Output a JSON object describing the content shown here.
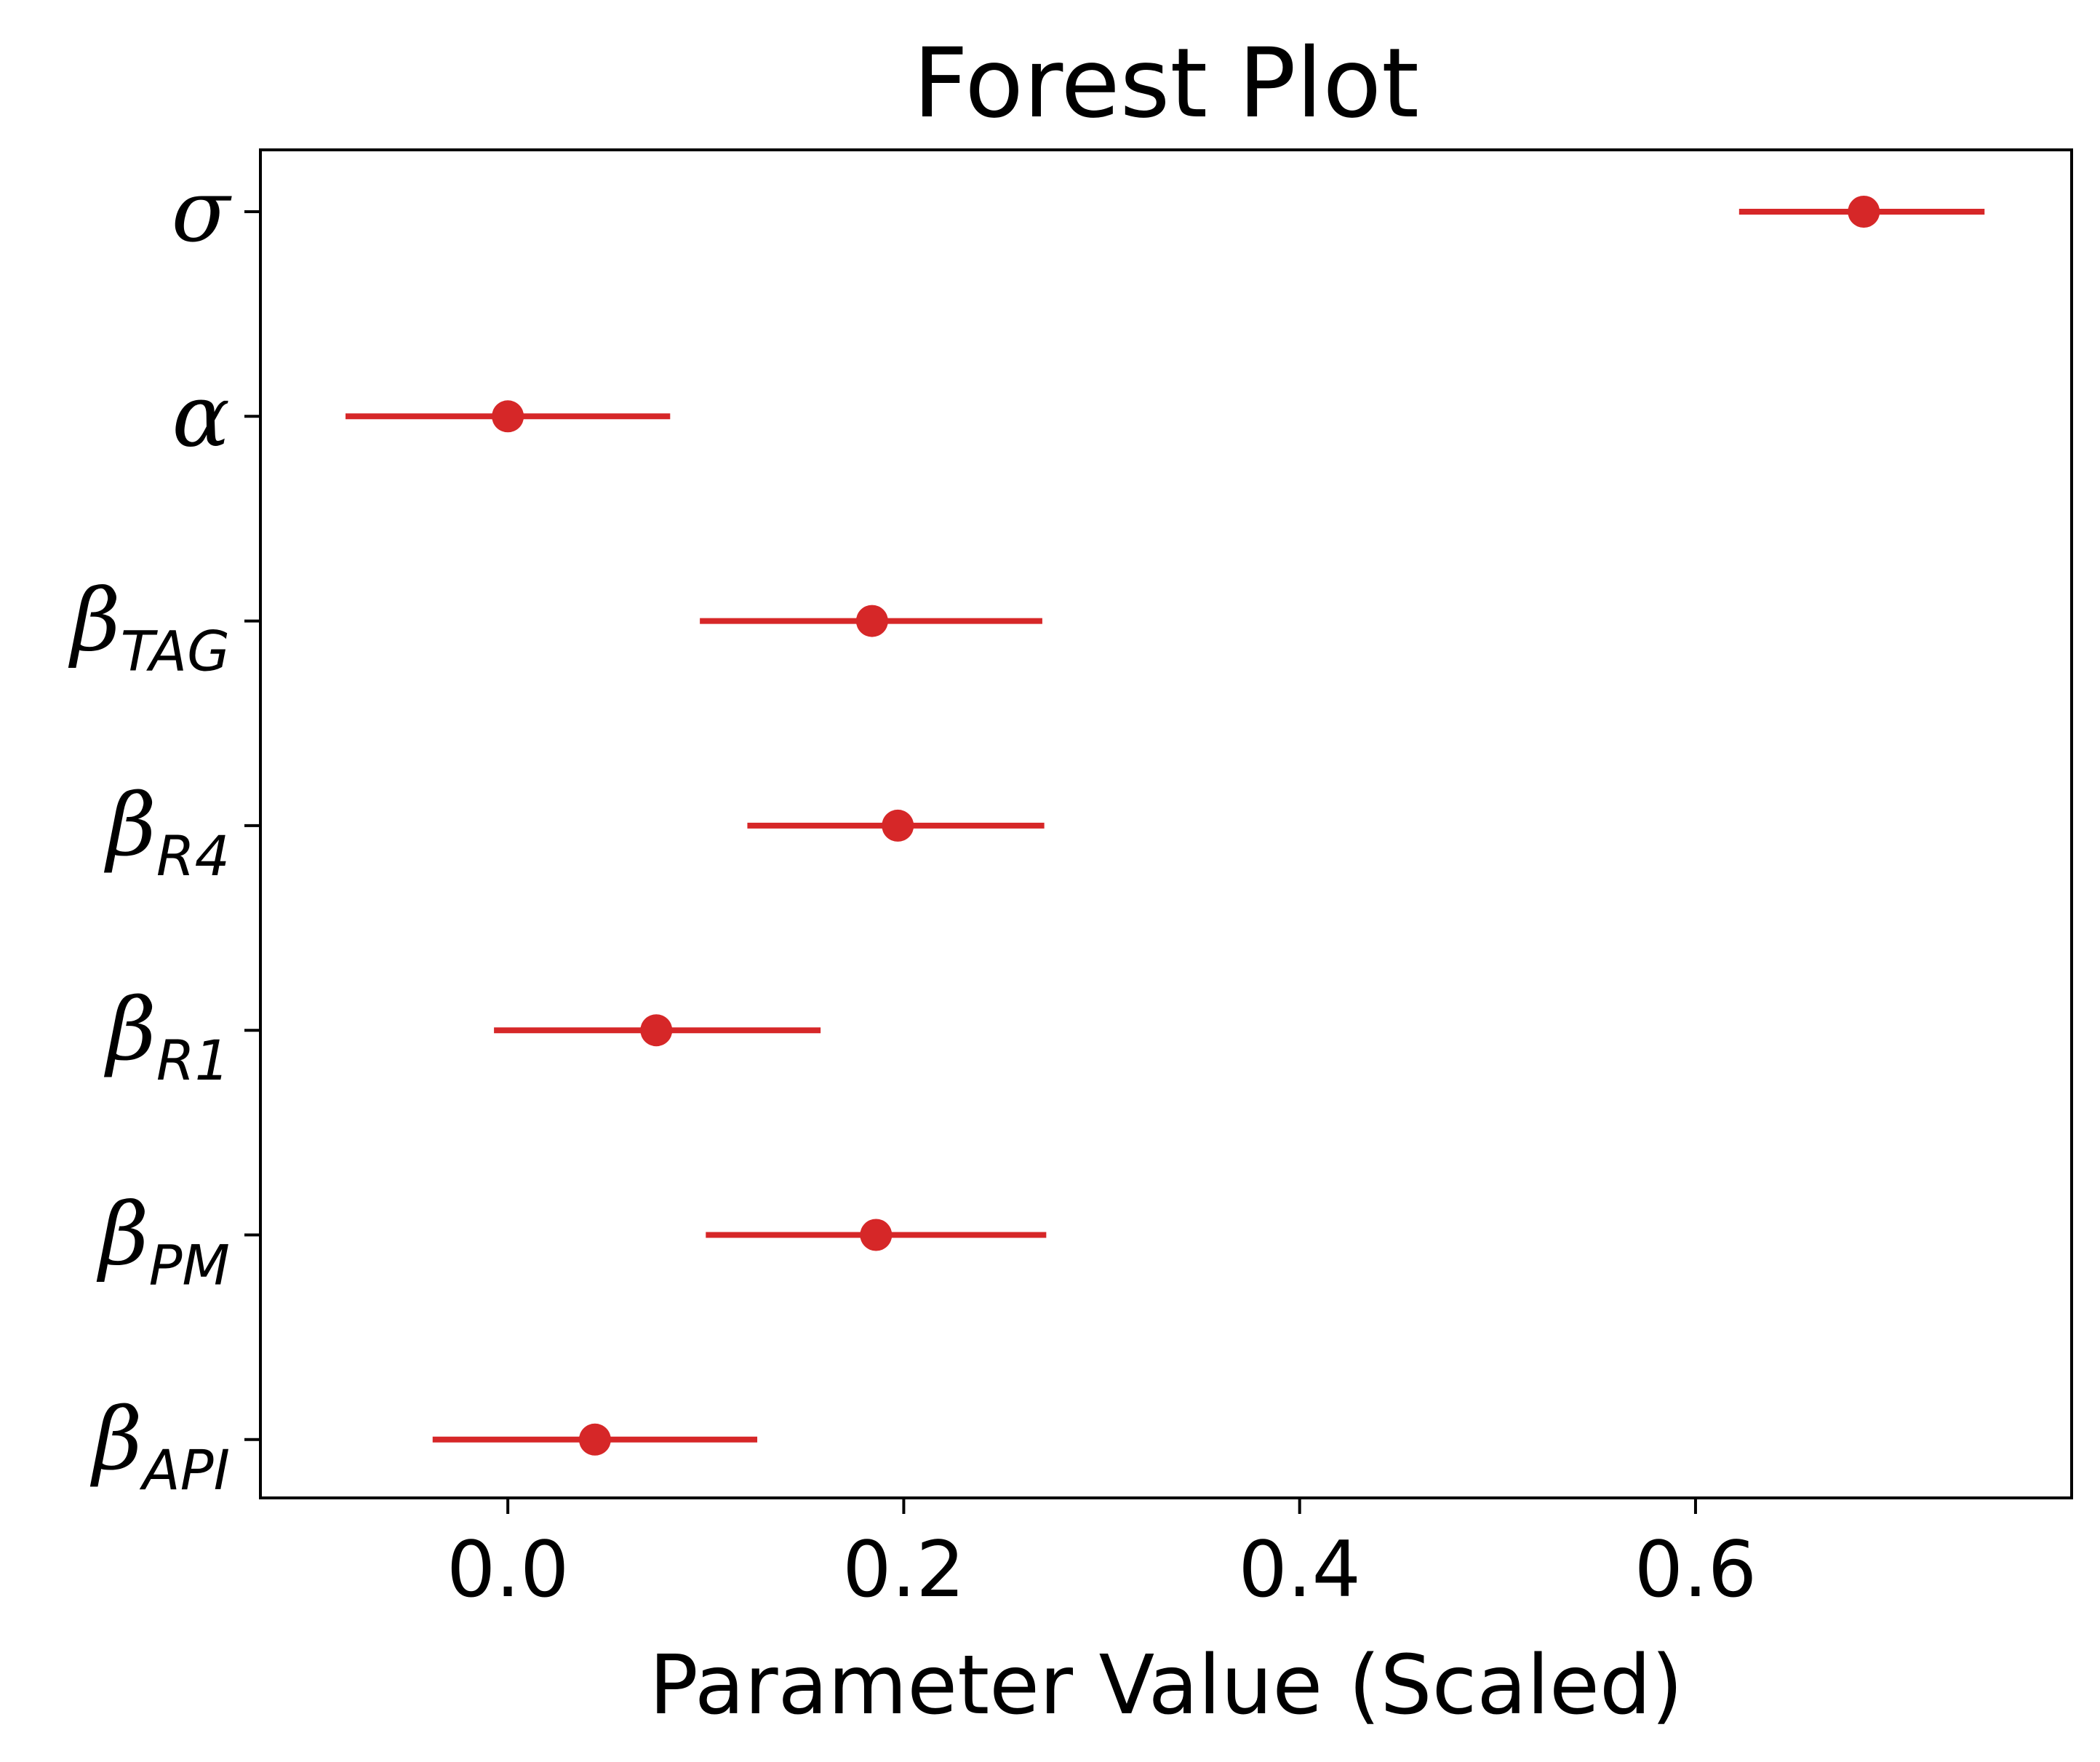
{
  "chart_data": {
    "type": "forest",
    "title": "Forest Plot",
    "xlabel": "Parameter Value (Scaled)",
    "xlim": [
      -0.125,
      0.79
    ],
    "xticks": [
      0.0,
      0.2,
      0.4,
      0.6
    ],
    "xtick_labels": [
      "0.0",
      "0.2",
      "0.4",
      "0.6"
    ],
    "color": "#d62728",
    "grid": false,
    "parameters": [
      {
        "symbol": "σ",
        "subscript": "",
        "mean": 0.685,
        "lower": 0.622,
        "upper": 0.746
      },
      {
        "symbol": "α",
        "subscript": "",
        "mean": 0.0,
        "lower": -0.082,
        "upper": 0.082
      },
      {
        "symbol": "β",
        "subscript": "TAG",
        "mean": 0.184,
        "lower": 0.097,
        "upper": 0.27
      },
      {
        "symbol": "β",
        "subscript": "R4",
        "mean": 0.197,
        "lower": 0.121,
        "upper": 0.271
      },
      {
        "symbol": "β",
        "subscript": "R1",
        "mean": 0.075,
        "lower": -0.007,
        "upper": 0.158
      },
      {
        "symbol": "β",
        "subscript": "PM",
        "mean": 0.186,
        "lower": 0.1,
        "upper": 0.272
      },
      {
        "symbol": "β",
        "subscript": "API",
        "mean": 0.044,
        "lower": -0.038,
        "upper": 0.126
      }
    ]
  }
}
